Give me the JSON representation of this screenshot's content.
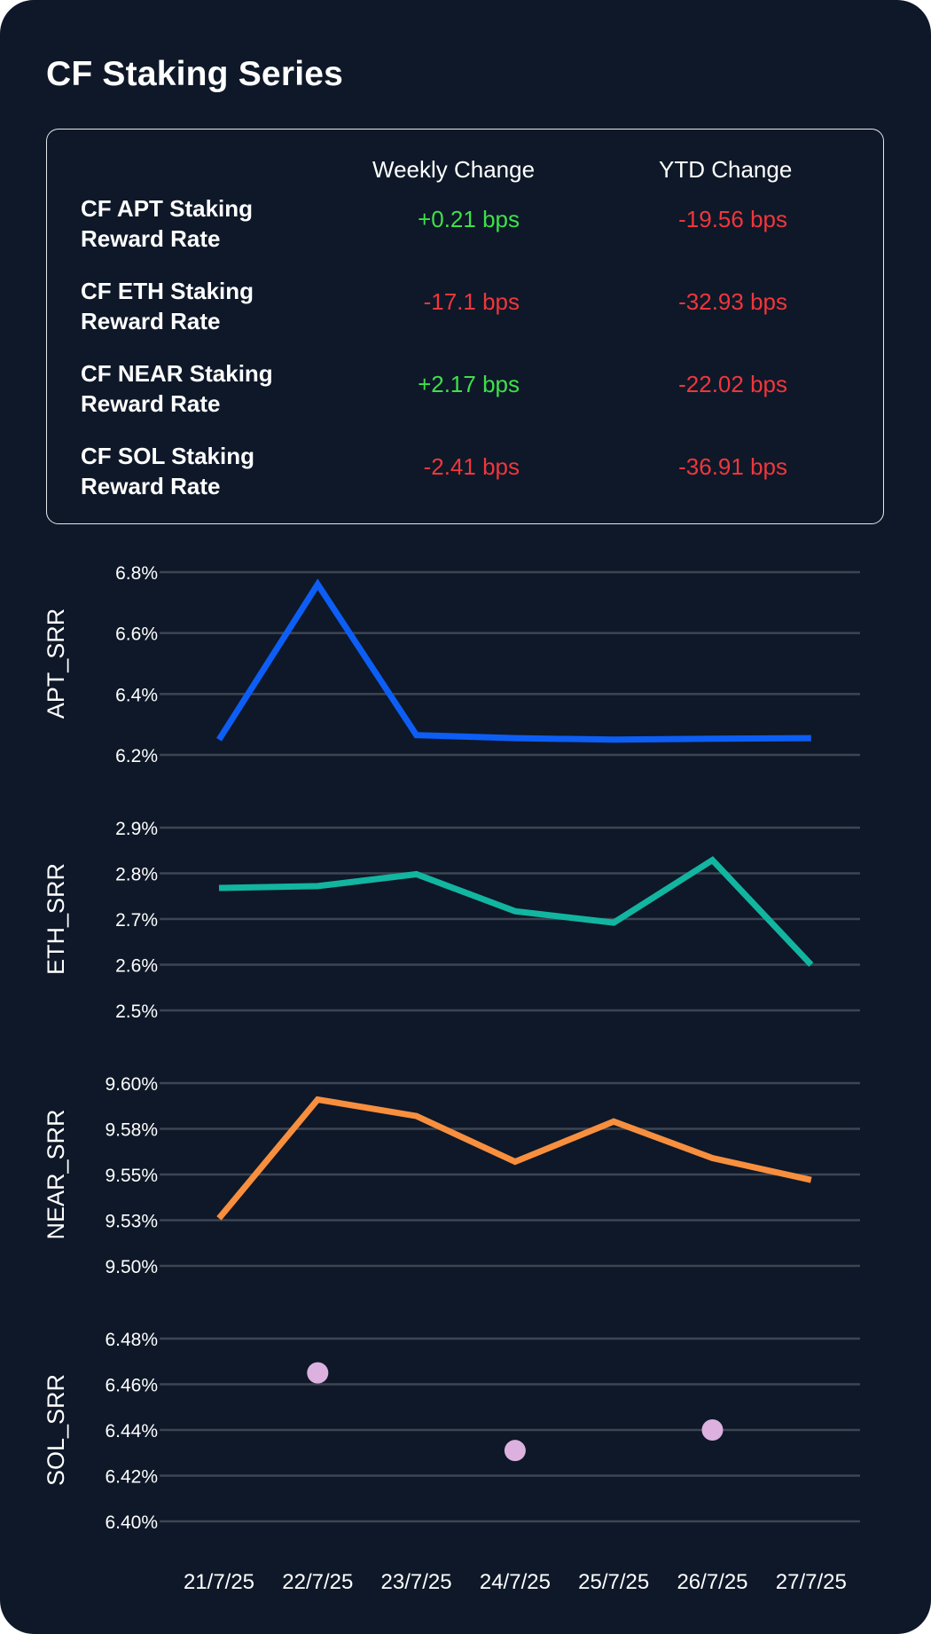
{
  "title": "CF Staking Series",
  "table": {
    "headers": [
      "Weekly Change",
      "YTD Change"
    ],
    "rows": [
      {
        "label": "CF APT Staking Reward Rate",
        "weekly": "+0.21 bps",
        "ytd": "-19.56 bps",
        "weekly_dir": "pos",
        "ytd_dir": "neg"
      },
      {
        "label": "CF ETH Staking Reward Rate",
        "weekly": "-17.1 bps",
        "ytd": "-32.93 bps",
        "weekly_dir": "neg",
        "ytd_dir": "neg"
      },
      {
        "label": "CF NEAR Staking Reward Rate",
        "weekly": "+2.17 bps",
        "ytd": "-22.02 bps",
        "weekly_dir": "pos",
        "ytd_dir": "neg"
      },
      {
        "label": "CF SOL Staking Reward Rate",
        "weekly": "-2.41 bps",
        "ytd": "-36.91 bps",
        "weekly_dir": "neg",
        "ytd_dir": "neg"
      }
    ]
  },
  "colors": {
    "background": "#0e1828",
    "gridline": "#3d4553",
    "positive": "#3ee04a",
    "negative": "#f0363c"
  },
  "chart_data": [
    {
      "type": "line",
      "ylabel": "APT_SRR",
      "color": "#0d5ef5",
      "ylim": [
        6.2,
        6.8
      ],
      "yticks": [
        6.8,
        6.6,
        6.4,
        6.2
      ],
      "ytick_labels": [
        "6.8%",
        "6.6%",
        "6.4%",
        "6.2%"
      ],
      "x": [
        "21/7/25",
        "22/7/25",
        "23/7/25",
        "24/7/25",
        "25/7/25",
        "26/7/25",
        "27/7/25"
      ],
      "values": [
        6.25,
        6.76,
        6.265,
        6.255,
        6.25,
        6.253,
        6.255
      ]
    },
    {
      "type": "line",
      "ylabel": "ETH_SRR",
      "color": "#12b5a0",
      "ylim": [
        2.5,
        2.9
      ],
      "yticks": [
        2.9,
        2.8,
        2.7,
        2.6,
        2.5
      ],
      "ytick_labels": [
        "2.9%",
        "2.8%",
        "2.7%",
        "2.6%",
        "2.5%"
      ],
      "x": [
        "21/7/25",
        "22/7/25",
        "23/7/25",
        "24/7/25",
        "25/7/25",
        "26/7/25",
        "27/7/25"
      ],
      "values": [
        2.768,
        2.772,
        2.798,
        2.717,
        2.692,
        2.829,
        2.6
      ]
    },
    {
      "type": "line",
      "ylabel": "NEAR_SRR",
      "color": "#f88f3e",
      "ylim": [
        9.5,
        9.6
      ],
      "yticks": [
        9.6,
        9.575,
        9.55,
        9.525,
        9.5
      ],
      "ytick_labels": [
        "9.60%",
        "9.58%",
        "9.55%",
        "9.53%",
        "9.50%"
      ],
      "x": [
        "21/7/25",
        "22/7/25",
        "23/7/25",
        "24/7/25",
        "25/7/25",
        "26/7/25",
        "27/7/25"
      ],
      "values": [
        9.526,
        9.591,
        9.582,
        9.557,
        9.579,
        9.559,
        9.547
      ]
    },
    {
      "type": "scatter",
      "ylabel": "SOL_SRR",
      "color": "#dcb1df",
      "ylim": [
        6.4,
        6.48
      ],
      "yticks": [
        6.48,
        6.46,
        6.44,
        6.42,
        6.4
      ],
      "ytick_labels": [
        "6.48%",
        "6.46%",
        "6.44%",
        "6.42%",
        "6.40%"
      ],
      "x": [
        "21/7/25",
        "22/7/25",
        "23/7/25",
        "24/7/25",
        "25/7/25",
        "26/7/25",
        "27/7/25"
      ],
      "values": [
        null,
        6.465,
        null,
        6.431,
        null,
        6.44,
        null
      ]
    }
  ],
  "x_axis_labels": [
    "21/7/25",
    "22/7/25",
    "23/7/25",
    "24/7/25",
    "25/7/25",
    "26/7/25",
    "27/7/25"
  ]
}
